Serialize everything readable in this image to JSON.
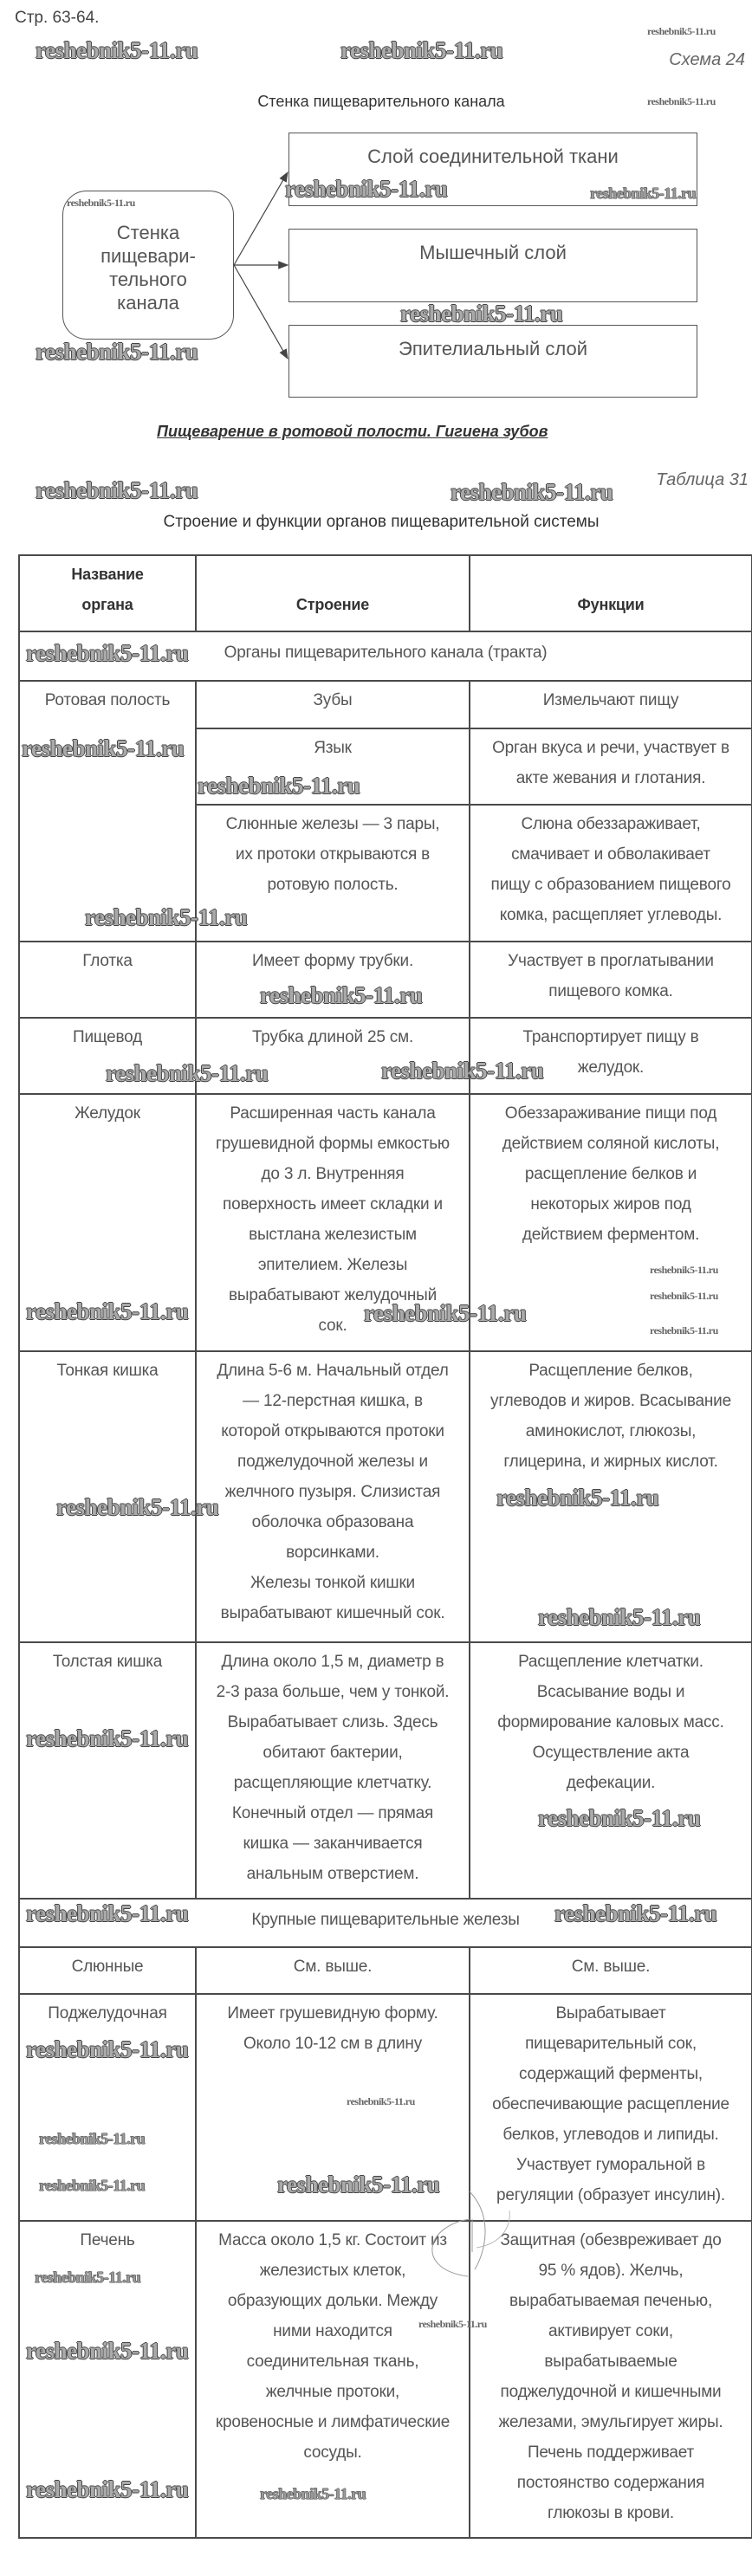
{
  "page_ref": "Стр. 63-64.",
  "scheme": {
    "number_label": "Схема 24",
    "title": "Стенка пищеварительного канала",
    "source_lines": [
      "Стенка",
      "пищевари-",
      "тельного",
      "канала"
    ],
    "targets": [
      "Слой соединительной ткани",
      "Мышечный слой",
      "Эпителиальный слой"
    ]
  },
  "section_heading": "Пищеварение в ротовой полости. Гигиена зубов",
  "table": {
    "number_label": "Таблица 31",
    "title": "Строение и функции органов пищеварительной системы",
    "header": [
      [
        "Название",
        "органа"
      ],
      [
        "Строение"
      ],
      [
        "Функции"
      ]
    ],
    "rows": [
      {
        "section": "Органы пищеварительного канала (тракта)"
      },
      {
        "cells": [
          {
            "lines": [
              "Ротовая полость"
            ],
            "rowspan": 3
          },
          {
            "lines": [
              "Зубы"
            ]
          },
          {
            "lines": [
              "Измельчают пищу"
            ]
          }
        ]
      },
      {
        "cells": [
          {
            "lines": [
              "Язык"
            ]
          },
          {
            "lines": [
              "Орган вкуса и речи, участвует в",
              "акте жевания и глотания."
            ]
          }
        ]
      },
      {
        "cells": [
          {
            "lines": [
              "Слюнные железы — 3 пары,",
              "их протоки открываются в",
              "ротовую полость."
            ]
          },
          {
            "lines": [
              "Слюна обеззараживает,",
              "смачивает и обволакивает",
              "пищу с образованием пищевого",
              "комка, расщепляет углеводы."
            ]
          }
        ]
      },
      {
        "cells": [
          {
            "lines": [
              "Глотка"
            ]
          },
          {
            "lines": [
              "Имеет форму трубки."
            ]
          },
          {
            "lines": [
              "Участвует в проглатывании",
              "пищевого комка."
            ]
          }
        ]
      },
      {
        "cells": [
          {
            "lines": [
              "Пищевод"
            ]
          },
          {
            "lines": [
              "Трубка длиной 25 см."
            ]
          },
          {
            "lines": [
              "Транспортирует пищу в",
              "желудок."
            ]
          }
        ]
      },
      {
        "cells": [
          {
            "lines": [
              "Желудок"
            ]
          },
          {
            "lines": [
              "Расширенная часть канала",
              "грушевидной формы емкостью",
              "до 3 л. Внутренняя",
              "поверхность имеет складки и",
              "выстлана железистым",
              "эпителием. Железы",
              "вырабатывают желудочный",
              "сок."
            ]
          },
          {
            "lines": [
              "Обеззараживание пищи под",
              "действием соляной кислоты,",
              "расщепление белков и",
              "некоторых жиров под",
              "действием ферментом."
            ]
          }
        ]
      },
      {
        "cells": [
          {
            "lines": [
              "Тонкая кишка"
            ]
          },
          {
            "lines": [
              "Длина 5-6 м. Начальный отдел",
              "— 12-перстная кишка, в",
              "которой открываются протоки",
              "поджелудочной железы и",
              "желчного пузыря. Слизистая",
              "оболочка образована",
              "ворсинками.",
              "Железы тонкой кишки",
              "вырабатывают кишечный сок."
            ]
          },
          {
            "lines": [
              "Расщепление белков,",
              "углеводов и жиров. Всасывание",
              "аминокислот, глюкозы,",
              "глицерина, и жирных кислот."
            ]
          }
        ]
      },
      {
        "cells": [
          {
            "lines": [
              "Толстая кишка"
            ]
          },
          {
            "lines": [
              "Длина около 1,5 м, диаметр в",
              "2-3 раза больше, чем у тонкой.",
              "Вырабатывает слизь. Здесь",
              "обитают бактерии,",
              "расщепляющие клетчатку.",
              "Конечный отдел — прямая",
              "кишка — заканчивается",
              "анальным отверстием."
            ]
          },
          {
            "lines": [
              "Расщепление клетчатки.",
              "Всасывание воды и",
              "формирование каловых масс.",
              "Осуществление акта",
              "дефекации."
            ]
          }
        ]
      },
      {
        "section": "Крупные пищеварительные железы"
      },
      {
        "cells": [
          {
            "lines": [
              "Слюнные"
            ]
          },
          {
            "lines": [
              "См. выше."
            ]
          },
          {
            "lines": [
              "См. выше."
            ]
          }
        ]
      },
      {
        "cells": [
          {
            "lines": [
              "Поджелудочная"
            ]
          },
          {
            "lines": [
              "Имеет грушевидную форму.",
              "Около 10-12 см в длину"
            ]
          },
          {
            "lines": [
              "Вырабатывает",
              "пищеварительный сок,",
              "содержащий ферменты,",
              "обеспечивающие расщепление",
              "белков, углеводов и липиды.",
              "Участвует гуморальной в",
              "регуляции (образует инсулин)."
            ]
          }
        ]
      },
      {
        "cells": [
          {
            "lines": [
              "Печень"
            ]
          },
          {
            "lines": [
              "Масса около 1,5 кг. Состоит из",
              "железистых клеток,",
              "образующих дольки. Между",
              "ними находится",
              "соединительная ткань,",
              "желчные протоки,",
              "кровеносные и лимфатические",
              "сосуды."
            ]
          },
          {
            "lines": [
              "Защитная (обезвреживает до",
              "95 % ядов). Желчь,",
              "вырабатываемая печенью,",
              "активирует соки,",
              "вырабатываемые",
              "поджелудочной и кишечными",
              "железами, эмульгирует жиры.",
              "Печень поддерживает",
              "постоянство содержания",
              "глюкозы в крови."
            ]
          }
        ]
      }
    ]
  },
  "watermark": "reshebnik5-11.ru"
}
